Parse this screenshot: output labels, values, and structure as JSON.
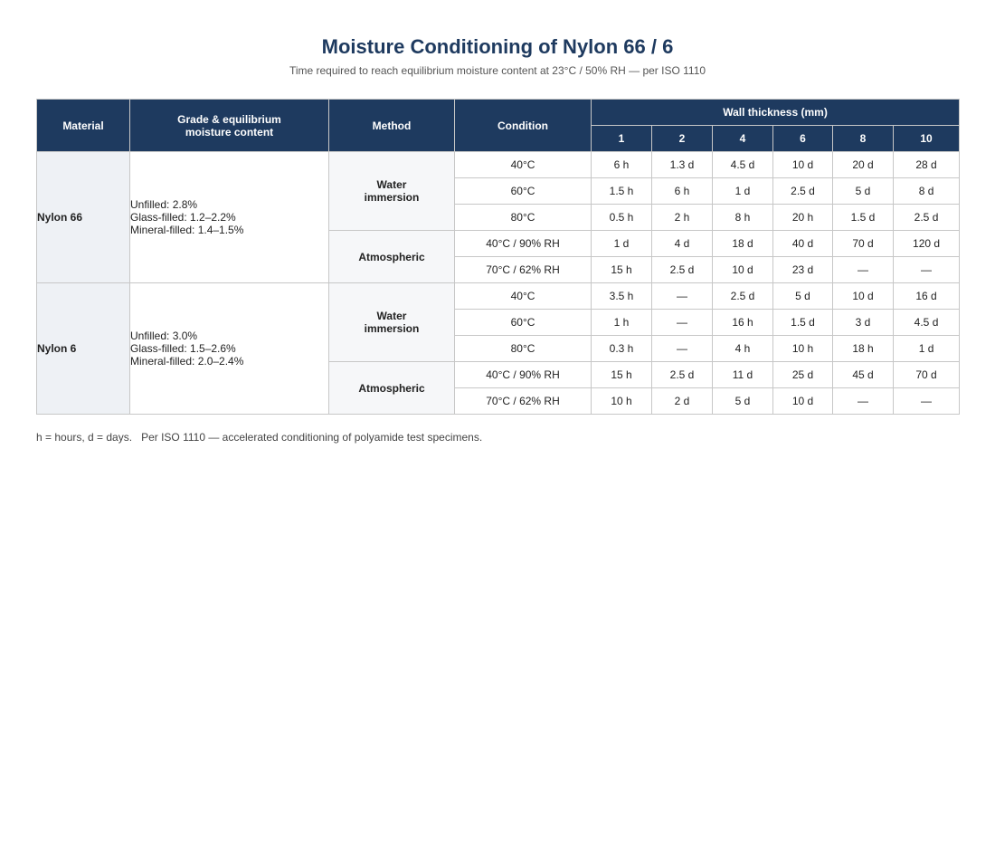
{
  "title": "Moisture Conditioning of Nylon 66 / 6",
  "subtitle": "Time required to reach equilibrium moisture content at 23°C / 50% RH — per ISO 1110",
  "headers": {
    "material": "Material",
    "grade_line1": "Grade & equilibrium",
    "grade_line2": "moisture content",
    "method": "Method",
    "condition": "Condition",
    "wall_thickness": "Wall thickness (mm)",
    "thicknesses": [
      "1",
      "2",
      "4",
      "6",
      "8",
      "10"
    ]
  },
  "materials": [
    {
      "name": "Nylon 66",
      "grades": [
        "Unfilled: 2.8%",
        "Glass-filled: 1.2–2.2%",
        "Mineral-filled: 1.4–1.5%"
      ],
      "methods": [
        {
          "line1": "Water",
          "line2": "immersion",
          "rows": [
            {
              "condition": "40°C",
              "values": [
                "6 h",
                "1.3 d",
                "4.5 d",
                "10 d",
                "20 d",
                "28 d"
              ]
            },
            {
              "condition": "60°C",
              "values": [
                "1.5 h",
                "6 h",
                "1 d",
                "2.5 d",
                "5 d",
                "8 d"
              ]
            },
            {
              "condition": "80°C",
              "values": [
                "0.5 h",
                "2 h",
                "8 h",
                "20 h",
                "1.5 d",
                "2.5 d"
              ]
            }
          ]
        },
        {
          "line1": "Atmospheric",
          "line2": "",
          "rows": [
            {
              "condition": "40°C / 90% RH",
              "values": [
                "1 d",
                "4 d",
                "18 d",
                "40 d",
                "70 d",
                "120 d"
              ]
            },
            {
              "condition": "70°C / 62% RH",
              "values": [
                "15 h",
                "2.5 d",
                "10 d",
                "23 d",
                "—",
                "—"
              ]
            }
          ]
        }
      ]
    },
    {
      "name": "Nylon 6",
      "grades": [
        "Unfilled: 3.0%",
        "Glass-filled: 1.5–2.6%",
        "Mineral-filled: 2.0–2.4%"
      ],
      "methods": [
        {
          "line1": "Water",
          "line2": "immersion",
          "rows": [
            {
              "condition": "40°C",
              "values": [
                "3.5 h",
                "—",
                "2.5 d",
                "5 d",
                "10 d",
                "16 d"
              ]
            },
            {
              "condition": "60°C",
              "values": [
                "1 h",
                "—",
                "16 h",
                "1.5 d",
                "3 d",
                "4.5 d"
              ]
            },
            {
              "condition": "80°C",
              "values": [
                "0.3 h",
                "—",
                "4 h",
                "10 h",
                "18 h",
                "1 d"
              ]
            }
          ]
        },
        {
          "line1": "Atmospheric",
          "line2": "",
          "rows": [
            {
              "condition": "40°C / 90% RH",
              "values": [
                "15 h",
                "2.5 d",
                "11 d",
                "25 d",
                "45 d",
                "70 d"
              ]
            },
            {
              "condition": "70°C / 62% RH",
              "values": [
                "10 h",
                "2 d",
                "5 d",
                "10 d",
                "—",
                "—"
              ]
            }
          ]
        }
      ]
    }
  ],
  "footnote": "h = hours, d = days.   Per ISO 1110 — accelerated conditioning of polyamide test specimens.",
  "colors": {
    "header_bg": "#1e3a5f",
    "material_cell_bg": "#eef1f5",
    "method_cell_bg": "#f6f7f9",
    "title": "#1e3a5f"
  }
}
